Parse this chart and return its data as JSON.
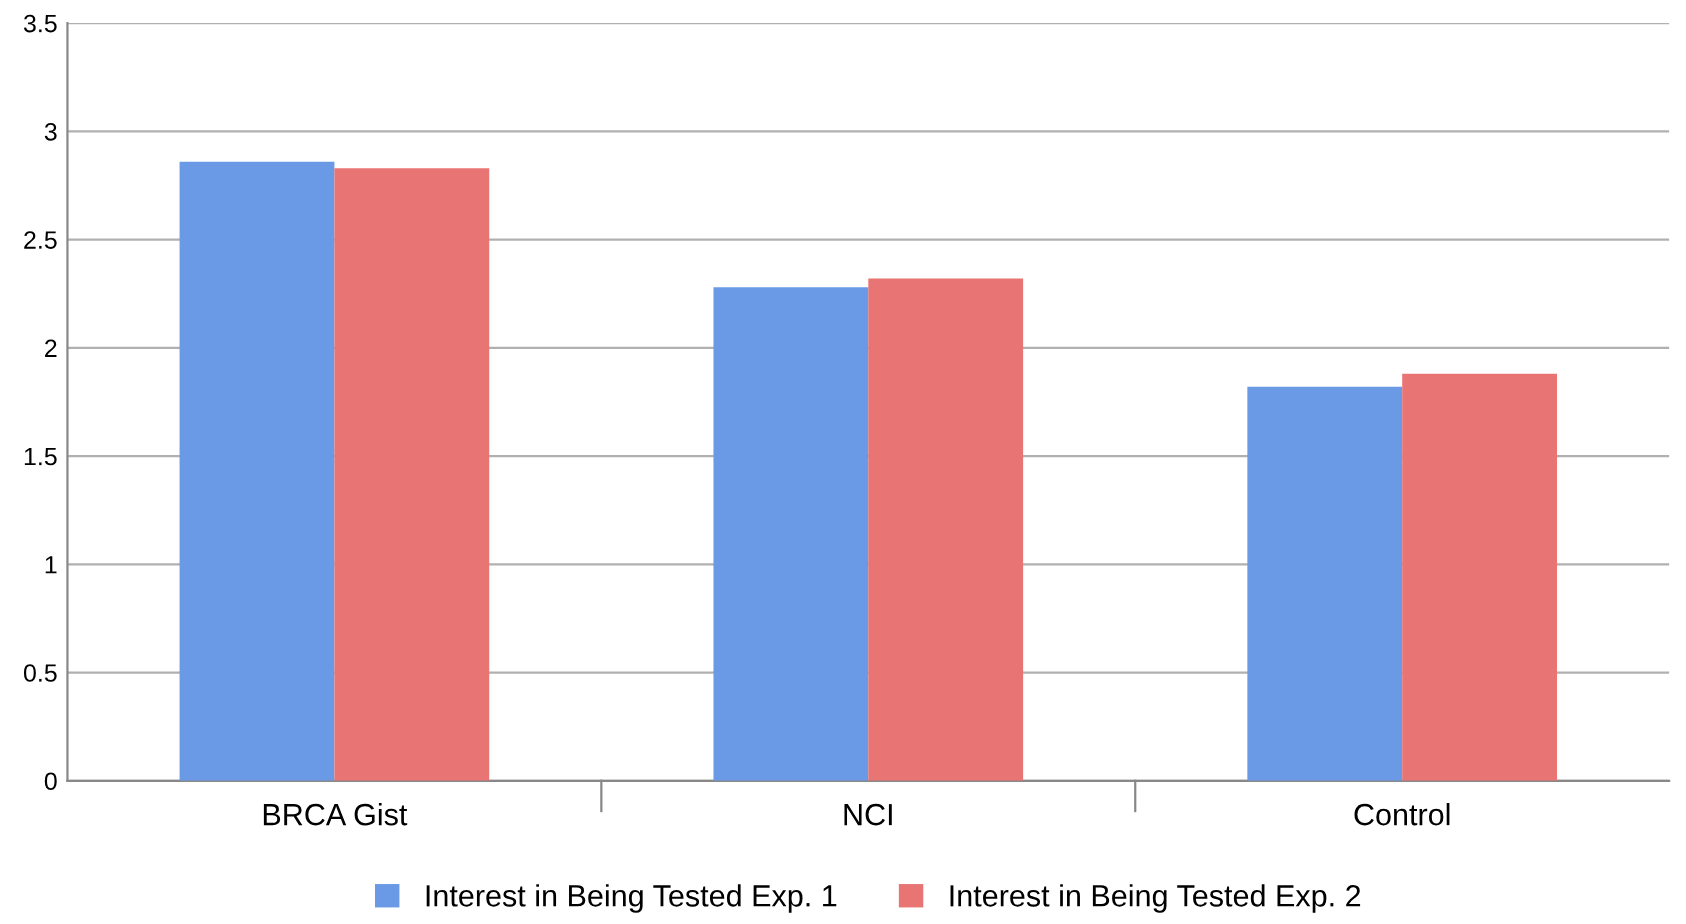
{
  "chart_data": {
    "type": "bar",
    "categories": [
      "BRCA Gist",
      "NCI",
      "Control"
    ],
    "series": [
      {
        "name": "Interest in Being Tested Exp. 1",
        "color": "#6a9ae6",
        "values": [
          2.86,
          2.28,
          1.82
        ]
      },
      {
        "name": "Interest in Being Tested Exp. 2",
        "color": "#e87474",
        "values": [
          2.83,
          2.32,
          1.88
        ]
      }
    ],
    "ylim": [
      0,
      3.5
    ],
    "yticks": [
      0,
      0.5,
      1,
      1.5,
      2,
      2.5,
      3,
      3.5
    ],
    "grid": "y",
    "legend": "bottom"
  }
}
